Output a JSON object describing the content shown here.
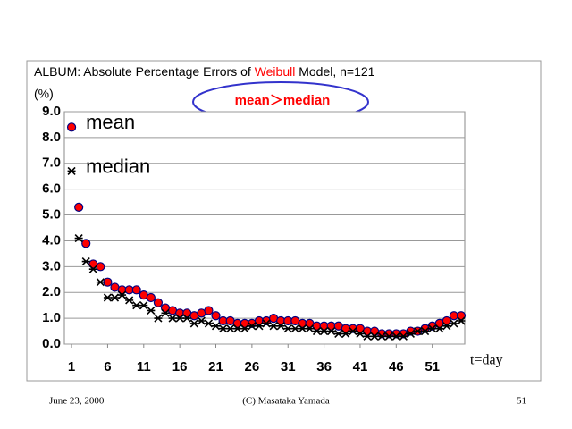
{
  "chart_data": {
    "type": "scatter",
    "title_parts": [
      "ALBUM: Absolute Percentage Errors of ",
      "Weibull",
      " Model, n=121"
    ],
    "title_colors": [
      "#000000",
      "#ff0000",
      "#000000"
    ],
    "annotation": "mean＞median",
    "annotation_color": "#ff0000",
    "y_unit_label": "(%)",
    "x_label": "t=day",
    "x": [
      1,
      2,
      3,
      4,
      5,
      6,
      7,
      8,
      9,
      10,
      11,
      12,
      13,
      14,
      15,
      16,
      17,
      18,
      19,
      20,
      21,
      22,
      23,
      24,
      25,
      26,
      27,
      28,
      29,
      30,
      31,
      32,
      33,
      34,
      35,
      36,
      37,
      38,
      39,
      40,
      41,
      42,
      43,
      44,
      45,
      46,
      47,
      48,
      49,
      50,
      51,
      52,
      53,
      54,
      55
    ],
    "series": [
      {
        "name": "mean",
        "color": "#ff0000",
        "edge_color": "#000080",
        "marker": "circle",
        "values": [
          8.4,
          5.3,
          3.9,
          3.1,
          3.0,
          2.4,
          2.2,
          2.1,
          2.1,
          2.1,
          1.9,
          1.8,
          1.6,
          1.4,
          1.3,
          1.2,
          1.2,
          1.1,
          1.2,
          1.3,
          1.1,
          0.9,
          0.9,
          0.8,
          0.8,
          0.8,
          0.9,
          0.9,
          1.0,
          0.9,
          0.9,
          0.9,
          0.8,
          0.8,
          0.7,
          0.7,
          0.7,
          0.7,
          0.6,
          0.6,
          0.6,
          0.5,
          0.5,
          0.4,
          0.4,
          0.4,
          0.4,
          0.5,
          0.5,
          0.6,
          0.7,
          0.8,
          0.9,
          1.1,
          1.1
        ]
      },
      {
        "name": "median",
        "color": "#000000",
        "marker": "asterisk",
        "values": [
          6.7,
          4.1,
          3.2,
          2.9,
          2.4,
          1.8,
          1.8,
          1.9,
          1.7,
          1.5,
          1.5,
          1.3,
          1.0,
          1.2,
          1.0,
          1.0,
          1.0,
          0.8,
          0.9,
          0.8,
          0.7,
          0.6,
          0.6,
          0.6,
          0.6,
          0.7,
          0.7,
          0.8,
          0.7,
          0.7,
          0.6,
          0.6,
          0.6,
          0.6,
          0.5,
          0.5,
          0.5,
          0.4,
          0.4,
          0.5,
          0.4,
          0.3,
          0.3,
          0.3,
          0.3,
          0.3,
          0.3,
          0.4,
          0.5,
          0.5,
          0.6,
          0.6,
          0.7,
          0.8,
          0.9
        ]
      }
    ],
    "xlim": [
      0,
      55.5
    ],
    "xticks": [
      1,
      6,
      11,
      16,
      21,
      26,
      31,
      36,
      41,
      46,
      51
    ],
    "ylim": [
      0,
      9
    ],
    "yticks": [
      {
        "value": 0,
        "label": "0.0"
      },
      {
        "value": 1,
        "label": "1.0"
      },
      {
        "value": 2,
        "label": "2.0"
      },
      {
        "value": 3,
        "label": "3.0"
      },
      {
        "value": 4,
        "label": "4.0"
      },
      {
        "value": 5,
        "label": "5.0"
      },
      {
        "value": 6,
        "label": "6.0"
      },
      {
        "value": 7,
        "label": "7.0"
      },
      {
        "value": 8,
        "label": "8.0"
      },
      {
        "value": 9,
        "label": "9.0"
      }
    ],
    "grid": true
  },
  "footer": {
    "date": "June 23, 2000",
    "copyright": "(C) Masataka Yamada",
    "page": "51"
  }
}
